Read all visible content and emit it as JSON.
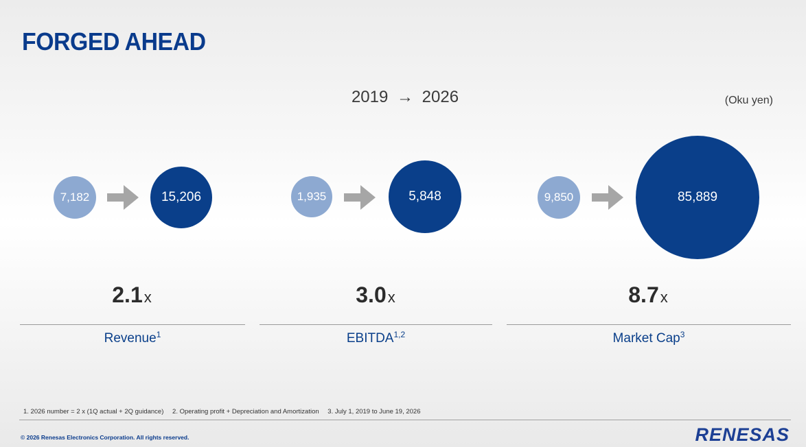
{
  "slide": {
    "title": "FORGED AHEAD",
    "period_start": "2019",
    "period_arrow": "→",
    "period_end": "2026",
    "unit": "(Oku yen)"
  },
  "metrics": [
    {
      "label": "Revenue",
      "footnote_ref": "1",
      "value_2019": "7,182",
      "value_2026": "15,206",
      "multiple": "2.1",
      "multiple_suffix": "x"
    },
    {
      "label": "EBITDA",
      "footnote_ref": "1,2",
      "value_2019": "1,935",
      "value_2026": "5,848",
      "multiple": "3.0",
      "multiple_suffix": "x"
    },
    {
      "label": "Market Cap",
      "footnote_ref": "3",
      "value_2019": "9,850",
      "value_2026": "85,889",
      "multiple": "8.7",
      "multiple_suffix": "x"
    }
  ],
  "footnotes": [
    "1. 2026 number = 2 x (1Q actual + 2Q guidance)",
    "2. Operating profit + Depreciation and Amortization",
    "3. July 1, 2019 to June 19, 2026"
  ],
  "footer": {
    "copyright": "© 2026 Renesas Electronics Corporation. All rights reserved.",
    "logo": "RENESAS"
  },
  "colors": {
    "brand_blue": "#0a3f8a",
    "light_blue": "#8da9d1",
    "arrow_gray": "#a6a6a6"
  }
}
